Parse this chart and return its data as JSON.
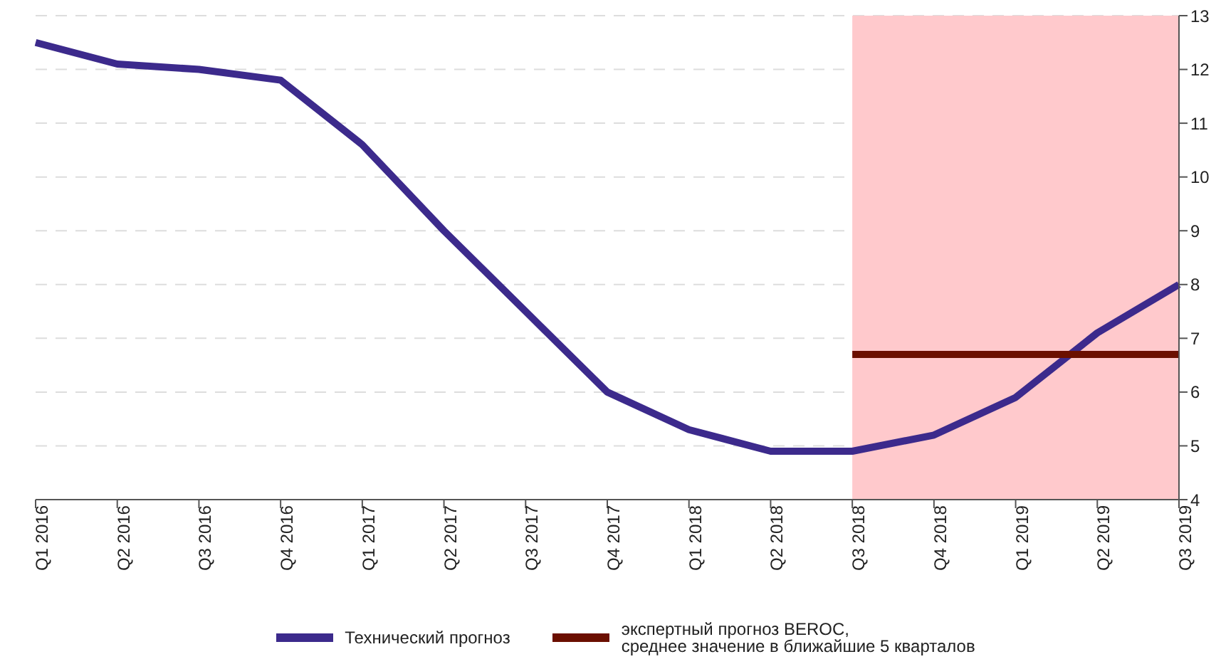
{
  "chart_data": {
    "type": "line",
    "categories": [
      "Q1 2016",
      "Q2 2016",
      "Q3 2016",
      "Q4 2016",
      "Q1 2017",
      "Q2 2017",
      "Q3 2017",
      "Q4 2017",
      "Q1 2018",
      "Q2 2018",
      "Q3 2018",
      "Q4 2018",
      "Q1 2019",
      "Q2 2019",
      "Q3 2019"
    ],
    "series": [
      {
        "name": "Технический прогноз",
        "color": "#3c2a8c",
        "values": [
          12.5,
          12.1,
          12.0,
          11.8,
          10.6,
          9.0,
          7.5,
          6.0,
          5.3,
          4.9,
          4.9,
          5.2,
          5.9,
          7.1,
          8.0
        ]
      },
      {
        "name": "экспертный прогноз BEROC,\nсреднее значение в ближайшие 5 кварталов",
        "color": "#6b0f00",
        "values": [
          null,
          null,
          null,
          null,
          null,
          null,
          null,
          null,
          null,
          null,
          6.7,
          6.7,
          6.7,
          6.7,
          6.7
        ]
      }
    ],
    "ylim": [
      4,
      13
    ],
    "yticks": [
      4,
      5,
      6,
      7,
      8,
      9,
      10,
      11,
      12,
      13
    ],
    "grid": "y",
    "legend": "bottom",
    "marker": "none",
    "line_style": "solid",
    "bands": [
      {
        "axis": "x",
        "from": "Q3 2018",
        "to": "Q3 2019",
        "color": "#ffc9cc"
      }
    ]
  }
}
